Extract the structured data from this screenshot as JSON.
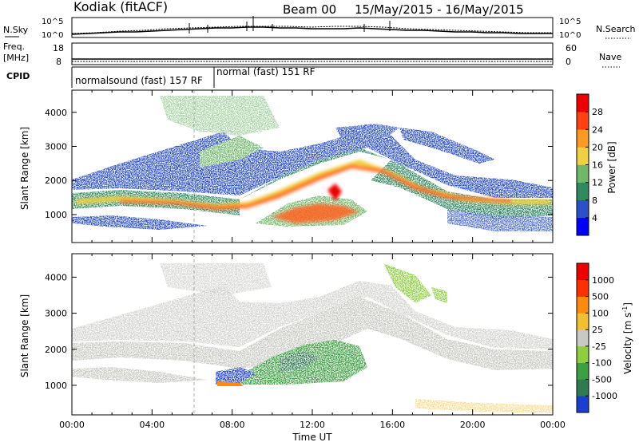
{
  "header": {
    "station": "Kodiak (fitACF)",
    "beam": "Beam 00",
    "dates": "15/May/2015 - 16/May/2015"
  },
  "panels": {
    "nsky": {
      "label": "N.Sky",
      "tick_top": "10^5",
      "tick_bottom": "10^0",
      "right_label": "N.Search",
      "right_top": "10^5",
      "right_bottom": "10^0"
    },
    "freq": {
      "label_line1": "Freq.",
      "label_line2": "[MHz]",
      "tick_top": "18",
      "tick_bottom": "8",
      "right_label": "Nave",
      "right_top": "60",
      "right_bottom": "0"
    },
    "cpid": {
      "label": "CPID",
      "mode_a": "normalsound (fast) 157 RF",
      "mode_b": "normal (fast) 151 RF"
    }
  },
  "chart_data": [
    {
      "type": "heatmap",
      "name": "power",
      "ylabel": "Slant Range [km]",
      "xlabel": "",
      "ylim": [
        180,
        4650
      ],
      "yticks": [
        "1000",
        "2000",
        "3000",
        "4000"
      ],
      "colorbar": {
        "label": "Power [dB]",
        "ticks": [
          "4",
          "8",
          "12",
          "16",
          "20",
          "24",
          "28"
        ],
        "colors": [
          "#0000ff",
          "#2b50c8",
          "#2f8a60",
          "#6fb86a",
          "#f0d040",
          "#ff9a20",
          "#ff4010",
          "#ee0000"
        ]
      },
      "features": [
        {
          "band": "main ground scatter",
          "from_hour": 0,
          "to_hour": 24,
          "range_km": [
            1000,
            2200
          ]
        },
        {
          "band": "near-range echoes",
          "from_hour": 9,
          "to_hour": 13.5,
          "range_km": [
            800,
            1600
          ]
        },
        {
          "band": "upper echoes",
          "from_hour": 13,
          "to_hour": 16,
          "range_km": [
            2500,
            3400
          ]
        }
      ]
    },
    {
      "type": "heatmap",
      "name": "velocity",
      "ylabel": "Slant Range [km]",
      "xlabel": "Time UT",
      "ylim": [
        180,
        4650
      ],
      "yticks": [
        "1000",
        "2000",
        "3000",
        "4000"
      ],
      "xticks": [
        "00:00",
        "04:00",
        "08:00",
        "12:00",
        "16:00",
        "20:00",
        "00:00"
      ],
      "colorbar": {
        "label": "Velocity [m s",
        "label_sup": "-1",
        "label_end": "]",
        "ticks": [
          "1000",
          "500",
          "100",
          "25",
          "-25",
          "-100",
          "-500",
          "-1000"
        ],
        "colors": [
          "#1a3fd0",
          "#2f7a50",
          "#3aa040",
          "#8cd040",
          "#c8c8c4",
          "#f0c030",
          "#ff8a10",
          "#ff3000",
          "#ee0000"
        ]
      }
    }
  ]
}
